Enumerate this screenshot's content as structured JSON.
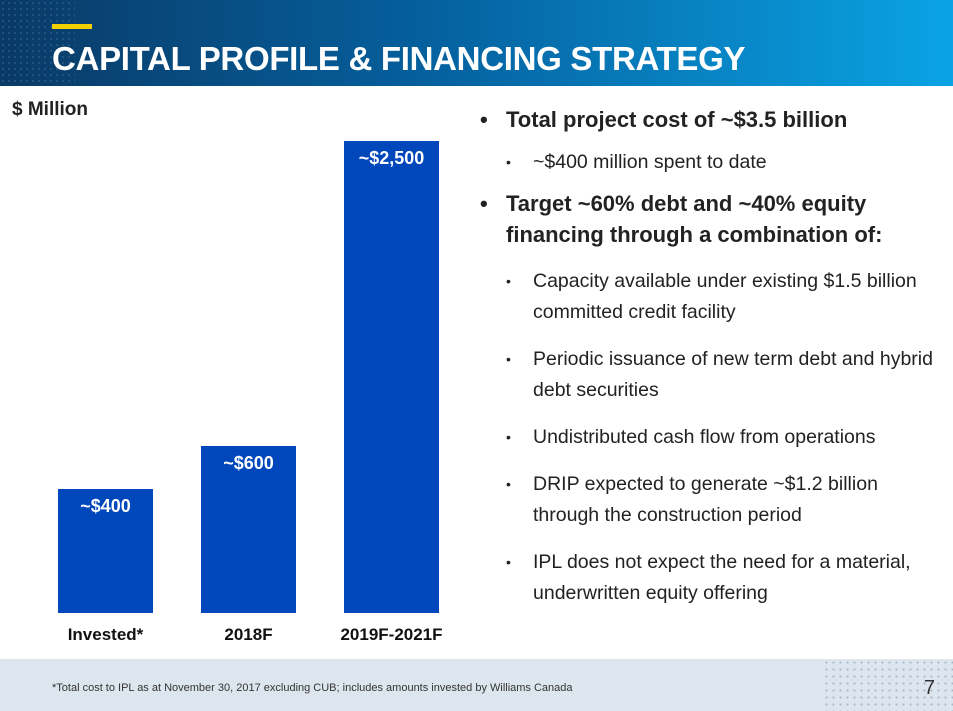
{
  "header": {
    "title": "CAPITAL PROFILE & FINANCING STRATEGY"
  },
  "chart_data": {
    "type": "bar",
    "ylabel": "$ Million",
    "categories": [
      "Invested*",
      "2018F",
      "2019F-2021F"
    ],
    "values": [
      400,
      600,
      2500
    ],
    "data_labels": [
      "~$400",
      "~$600",
      "~$2,500"
    ],
    "color": "#0047bb"
  },
  "bullets": [
    {
      "text": "Total project cost of ~$3.5 billion",
      "sub": [
        "~$400 million spent to date"
      ]
    },
    {
      "text": "Target ~60% debt and ~40% equity financing through a combination of:",
      "sub": [
        "Capacity available under existing $1.5 billion committed credit facility",
        "Periodic issuance of new term debt and hybrid debt securities",
        "Undistributed cash flow from operations",
        "DRIP expected to generate ~$1.2 billion through the construction period",
        "IPL does not expect the need for a material, underwritten equity offering"
      ]
    }
  ],
  "footer": {
    "footnote": "*Total cost to IPL as at November 30, 2017 excluding CUB; includes amounts invested by Williams Canada",
    "page": "7"
  }
}
